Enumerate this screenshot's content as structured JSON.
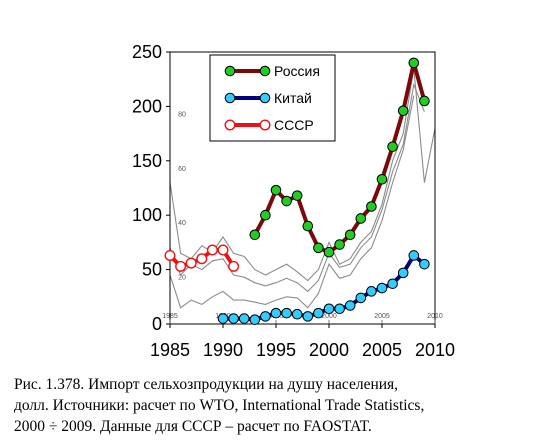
{
  "chart_data": {
    "type": "line",
    "title": "",
    "xlabel": "",
    "ylabel": "",
    "xlim": [
      1985,
      2010
    ],
    "ylim": [
      0,
      250
    ],
    "x_ticks": [
      "1985",
      "1990",
      "1995",
      "2000",
      "2005",
      "2010"
    ],
    "y_ticks": [
      "0",
      "50",
      "100",
      "150",
      "200",
      "250"
    ],
    "inner_x_ticks": [
      "1985",
      "1990",
      "1995",
      "2000",
      "2005",
      "2010"
    ],
    "inner_y_ticks": [
      "20",
      "40",
      "60",
      "80"
    ],
    "legend_position": "top-center",
    "series": [
      {
        "name": "Россия",
        "line_color": "#7a0a0a",
        "marker_color": "#22cc22",
        "marker_fill": true,
        "x": [
          1993,
          1994,
          1995,
          1996,
          1997,
          1998,
          1999,
          2000,
          2001,
          2002,
          2003,
          2004,
          2005,
          2006,
          2007,
          2008,
          2009
        ],
        "y": [
          82,
          100,
          123,
          113,
          118,
          90,
          70,
          66,
          73,
          82,
          97,
          108,
          133,
          163,
          196,
          240,
          205
        ]
      },
      {
        "name": "Китай",
        "line_color": "#000080",
        "marker_color": "#33ccff",
        "marker_fill": true,
        "x": [
          1990,
          1991,
          1992,
          1993,
          1994,
          1995,
          1996,
          1997,
          1998,
          1999,
          2000,
          2001,
          2002,
          2003,
          2004,
          2005,
          2006,
          2007,
          2008,
          2009
        ],
        "y": [
          5,
          5,
          5,
          4,
          7,
          10,
          10,
          9,
          7,
          10,
          14,
          14,
          17,
          24,
          30,
          33,
          37,
          47,
          63,
          55
        ]
      },
      {
        "name": "СССР",
        "line_color": "#ee1111",
        "marker_color": "#ee1111",
        "marker_fill": false,
        "x": [
          1985,
          1986,
          1987,
          1988,
          1989,
          1990,
          1991
        ],
        "y": [
          63,
          53,
          56,
          60,
          68,
          68,
          53
        ]
      }
    ],
    "background_lines": [
      {
        "x": [
          1985,
          1986,
          1987,
          1988,
          1989,
          1990,
          1991,
          1992,
          1993,
          1994,
          1995,
          1996,
          1997,
          1998,
          1999,
          2000,
          2001,
          2002,
          2003,
          2004,
          2005,
          2006,
          2007,
          2008,
          2009,
          2010
        ],
        "y": [
          130,
          65,
          60,
          72,
          66,
          80,
          65,
          62,
          50,
          45,
          50,
          55,
          48,
          40,
          50,
          75,
          55,
          60,
          75,
          85,
          110,
          150,
          175,
          235,
          130,
          180
        ]
      },
      {
        "x": [
          1985,
          1986,
          1987,
          1988,
          1989,
          1990,
          1991,
          1992,
          1993,
          1994,
          1995,
          1996,
          1997,
          1998,
          1999,
          2000,
          2001,
          2002,
          2003,
          2004,
          2005,
          2006,
          2007,
          2008,
          2009
        ],
        "y": [
          70,
          45,
          55,
          50,
          58,
          60,
          45,
          43,
          38,
          35,
          38,
          42,
          38,
          30,
          40,
          65,
          52,
          55,
          70,
          80,
          105,
          140,
          165,
          220,
          195
        ]
      },
      {
        "x": [
          1985,
          1986,
          1987,
          1988,
          1989,
          1990,
          1991,
          1992,
          1993,
          1994,
          1995,
          1996,
          1997,
          1998,
          1999,
          2000,
          2001,
          2002,
          2003,
          2004,
          2005,
          2006,
          2007,
          2008
        ],
        "y": [
          45,
          15,
          22,
          18,
          25,
          30,
          22,
          22,
          20,
          18,
          22,
          25,
          24,
          15,
          28,
          55,
          42,
          45,
          60,
          70,
          95,
          130,
          160,
          210
        ]
      }
    ]
  },
  "caption": {
    "line1": "Рис. 1.378. Импорт сельхозпродукции на душу населения,",
    "line2": "долл. Источники: расчет по WTO, International Trade Statistics,",
    "line3": "2000 ÷ 2009. Данные для СССР – расчет по FAOSTAT."
  }
}
